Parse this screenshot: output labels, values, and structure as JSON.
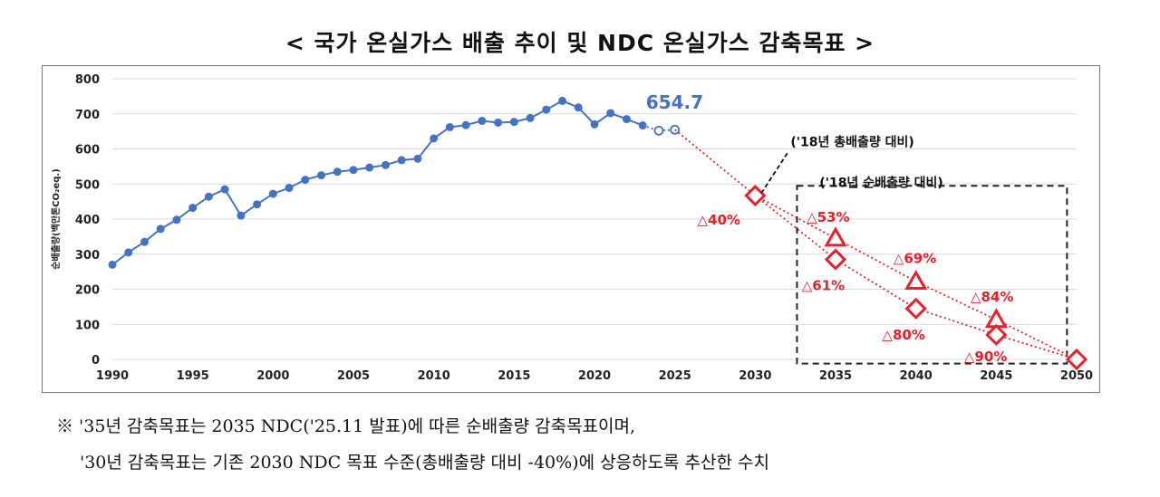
{
  "title": "< 국가 온실가스 배출 추이 및 NDC 온실가스 감축목표 >",
  "notes": [
    "※ '35년 감축목표는 2035 NDC('25.11 발표)에 따른 순배출량 감축목표이며,",
    "'30년 감축목표는 기존 2030 NDC 목표 수준(총배출량 대비 -40%)에 상응하도록 추산한 수치"
  ],
  "colors": {
    "historical": "#4472C4",
    "target": "#E8202A",
    "box": "#222222"
  },
  "chart_data": {
    "type": "line",
    "title": "",
    "ylabel": "순배출량(백만톤CO₂eq.)",
    "xlabel": "",
    "xlim": [
      1990,
      2050
    ],
    "ylim": [
      0,
      800
    ],
    "xticks": [
      "1990",
      "1995",
      "2000",
      "2005",
      "2010",
      "2015",
      "2020",
      "2025",
      "2030",
      "2035",
      "2040",
      "2045",
      "2050"
    ],
    "yticks": [
      "0",
      "100",
      "200",
      "300",
      "400",
      "500",
      "600",
      "700",
      "800"
    ],
    "grid": true,
    "historical": {
      "x": [
        1990,
        1991,
        1992,
        1993,
        1994,
        1995,
        1996,
        1997,
        1998,
        1999,
        2000,
        2001,
        2002,
        2003,
        2004,
        2005,
        2006,
        2007,
        2008,
        2009,
        2010,
        2011,
        2012,
        2013,
        2014,
        2015,
        2016,
        2017,
        2018,
        2019,
        2020,
        2021,
        2022,
        2023
      ],
      "y": [
        270,
        305,
        335,
        372,
        398,
        432,
        464,
        485,
        410,
        442,
        472,
        489,
        512,
        525,
        535,
        540,
        547,
        554,
        568,
        572,
        630,
        662,
        668,
        680,
        675,
        677,
        688,
        712,
        737,
        718,
        670,
        702,
        685,
        667
      ]
    },
    "projection": {
      "x": [
        2024,
        2025
      ],
      "y": [
        652,
        654.7
      ]
    },
    "projection_label": "654.7",
    "gross_series": {
      "name": "('18년 총배출량 대비)",
      "x": [
        2030,
        2035,
        2040,
        2045,
        2050
      ],
      "y": [
        467,
        345,
        222,
        113,
        0
      ],
      "labels": [
        "△40%",
        "△53%",
        "△69%",
        "△84%",
        ""
      ]
    },
    "net_series": {
      "name": "('18년 순배출량 대비)",
      "x": [
        2030,
        2035,
        2040,
        2045,
        2050
      ],
      "y": [
        467,
        285,
        145,
        70,
        0
      ],
      "labels": [
        "",
        "△61%",
        "△80%",
        "△90%",
        ""
      ]
    }
  }
}
